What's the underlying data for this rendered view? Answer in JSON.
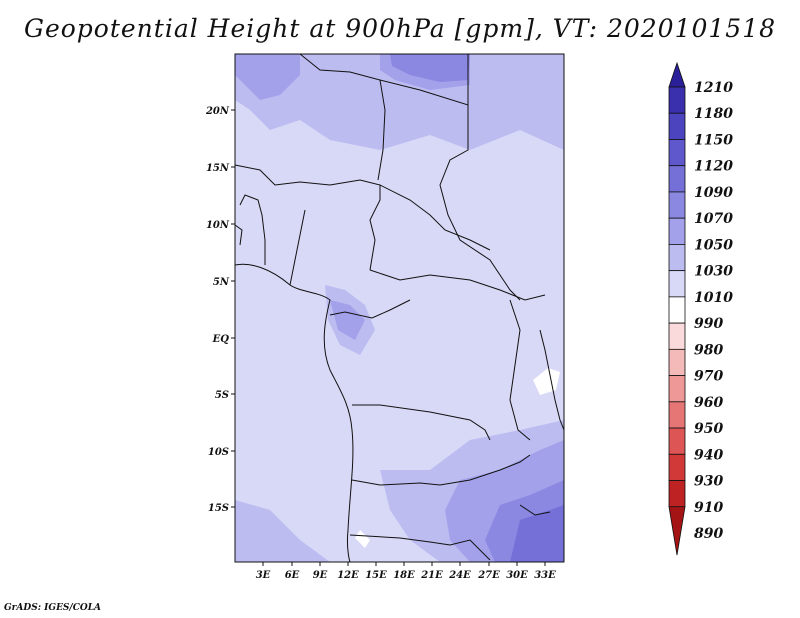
{
  "title": "Geopotential Height at 900hPa [gpm], VT: 2020101518",
  "credit": "GrADS: IGES/COLA",
  "axes": {
    "lat_labels": [
      "20N",
      "15N",
      "10N",
      "5N",
      "EQ",
      "5S",
      "10S",
      "15S"
    ],
    "lon_labels": [
      "3E",
      "6E",
      "9E",
      "12E",
      "15E",
      "18E",
      "21E",
      "24E",
      "27E",
      "30E",
      "33E"
    ]
  },
  "colorbar": {
    "levels": [
      "1210",
      "1180",
      "1150",
      "1120",
      "1090",
      "1070",
      "1050",
      "1030",
      "1010",
      "990",
      "980",
      "970",
      "960",
      "950",
      "940",
      "930",
      "910",
      "890"
    ],
    "colors": [
      "#2b1f9a",
      "#3a30ae",
      "#4c44bf",
      "#5f58cc",
      "#7470d8",
      "#8b88e2",
      "#a3a1ea",
      "#bdbcf1",
      "#d8d8f7",
      "#ffffff",
      "#fadada",
      "#f4b9b9",
      "#ee9898",
      "#e67676",
      "#dd5555",
      "#d13838",
      "#bf2222",
      "#a51414"
    ]
  },
  "field_colors": {
    "base": "#d8d8f7",
    "mid": "#bdbcf1",
    "high": "#a3a1ea",
    "higher": "#8b88e2",
    "highest": "#7470d8",
    "low": "#ffffff"
  }
}
